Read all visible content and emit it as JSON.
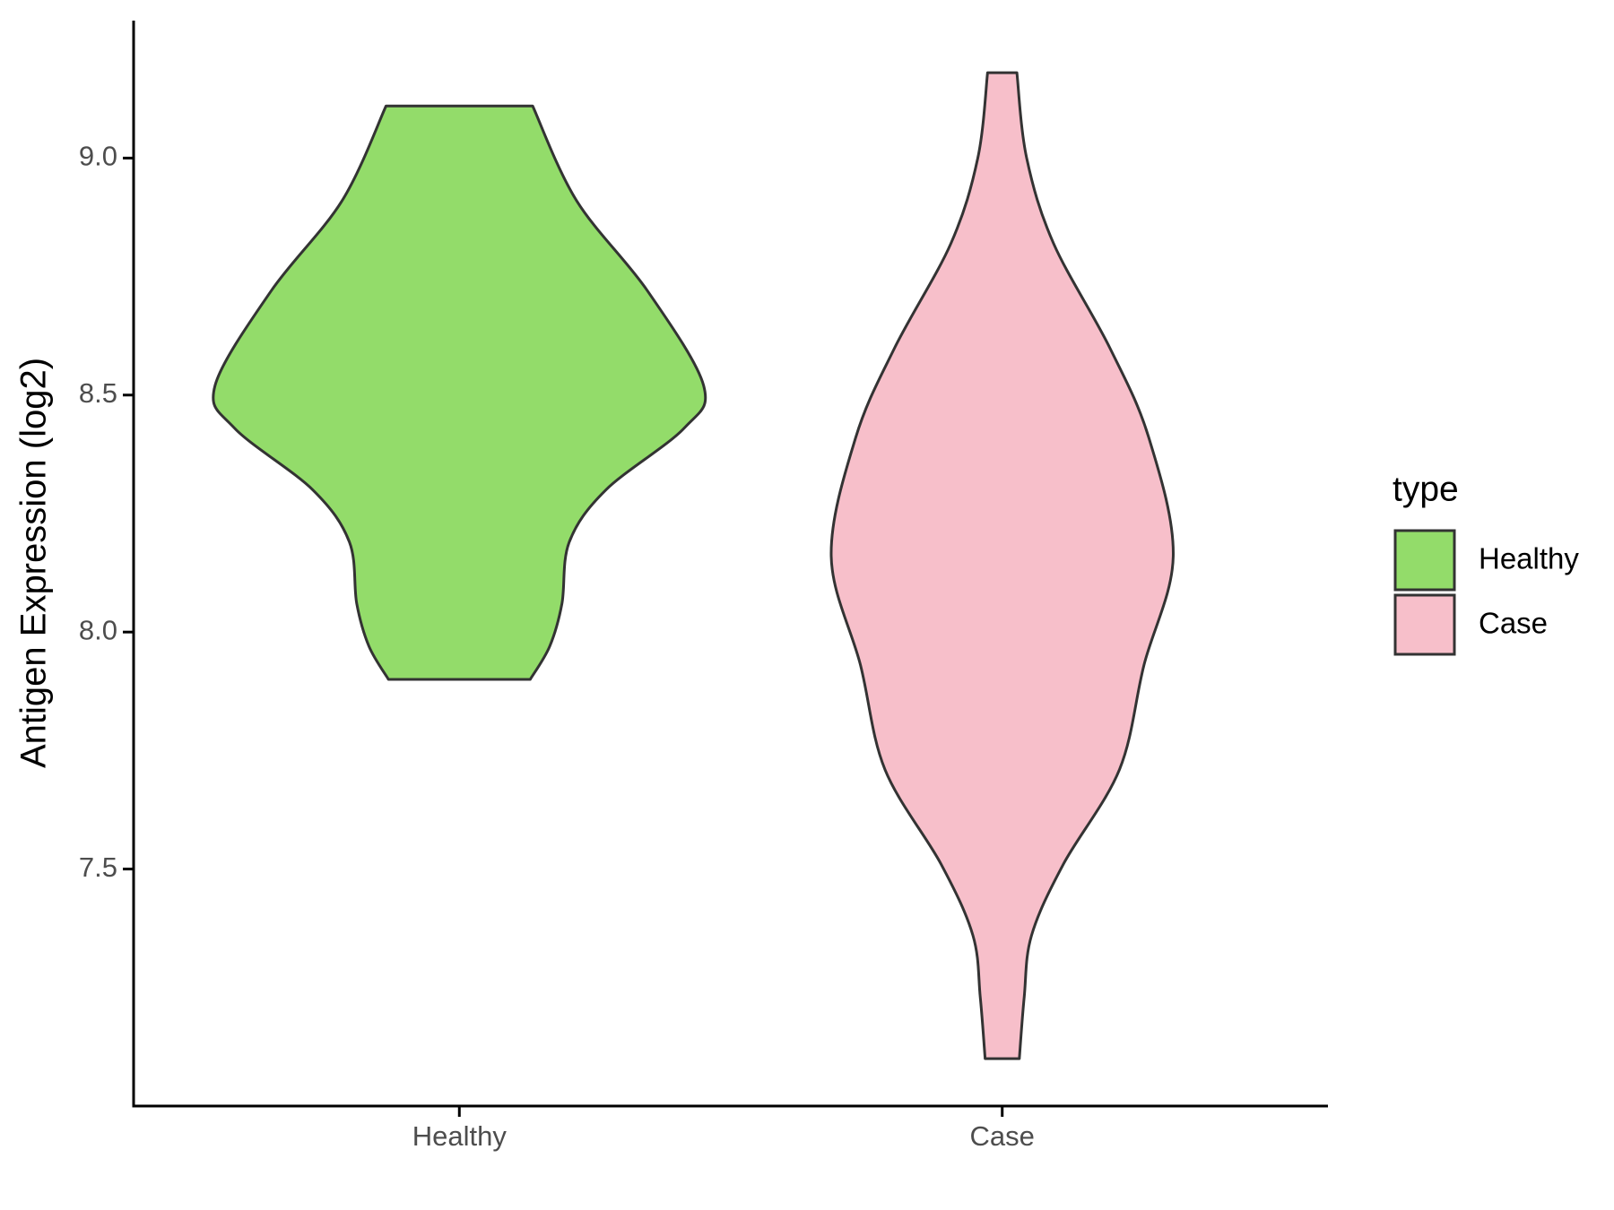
{
  "chart_data": {
    "type": "violin",
    "y_label": "Antigen Expression (log2)",
    "categories": [
      "Healthy",
      "Case"
    ],
    "ylim": [
      7.0,
      9.29
    ],
    "yticks": [
      {
        "value": 7.5,
        "label": "7.5"
      },
      {
        "value": 8.0,
        "label": "8.0"
      },
      {
        "value": 8.5,
        "label": "8.5"
      },
      {
        "value": 9.0,
        "label": "9.0"
      }
    ],
    "legend_title": "type",
    "legend": "right",
    "series": [
      {
        "name": "Healthy",
        "color": "#93dc6a",
        "y": [
          9.11,
          8.91,
          8.72,
          8.52,
          8.43,
          8.3,
          8.19,
          8.06,
          7.97,
          7.9
        ],
        "density": [
          0.3,
          0.48,
          0.77,
          1.0,
          0.92,
          0.6,
          0.45,
          0.42,
          0.37,
          0.29
        ]
      },
      {
        "name": "Case",
        "color": "#f7bfca",
        "y": [
          9.18,
          9.0,
          8.82,
          8.6,
          8.41,
          8.16,
          7.93,
          7.71,
          7.51,
          7.36,
          7.23,
          7.1
        ],
        "density": [
          0.06,
          0.1,
          0.21,
          0.44,
          0.6,
          0.7,
          0.58,
          0.48,
          0.25,
          0.12,
          0.09,
          0.07
        ]
      }
    ]
  }
}
